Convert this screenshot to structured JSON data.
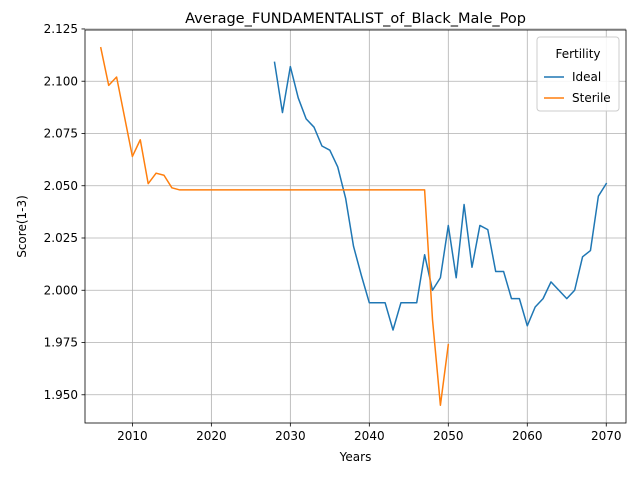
{
  "chart_data": {
    "type": "line",
    "title": "Average_FUNDAMENTALIST_of_Black_Male_Pop",
    "xlabel": "Years",
    "ylabel": "Score(1-3)",
    "xlim": [
      2004,
      2072.5
    ],
    "ylim": [
      1.9365,
      2.1245
    ],
    "xticks": [
      2010,
      2020,
      2030,
      2040,
      2050,
      2060,
      2070
    ],
    "yticks": [
      1.95,
      1.975,
      2.0,
      2.025,
      2.05,
      2.075,
      2.1,
      2.125
    ],
    "ytick_labels": [
      "1.950",
      "1.975",
      "2.000",
      "2.025",
      "2.050",
      "2.075",
      "2.100",
      "2.125"
    ],
    "grid": true,
    "legend": {
      "title": "Fertility",
      "placement": "top-right"
    },
    "series": [
      {
        "name": "Ideal",
        "color": "#1f77b4",
        "x": [
          2028,
          2029,
          2030,
          2031,
          2032,
          2033,
          2034,
          2035,
          2036,
          2037,
          2038,
          2039,
          2040,
          2041,
          2042,
          2043,
          2044,
          2045,
          2046,
          2047,
          2048,
          2049,
          2050,
          2051,
          2052,
          2053,
          2054,
          2055,
          2056,
          2057,
          2058,
          2059,
          2060,
          2061,
          2062,
          2063,
          2064,
          2065,
          2066,
          2067,
          2068,
          2069,
          2070
        ],
        "y": [
          2.109,
          2.085,
          2.107,
          2.092,
          2.082,
          2.078,
          2.069,
          2.067,
          2.059,
          2.044,
          2.021,
          2.007,
          1.994,
          1.994,
          1.994,
          1.981,
          1.994,
          1.994,
          1.994,
          2.017,
          2.0,
          2.006,
          2.031,
          2.006,
          2.041,
          2.011,
          2.031,
          2.029,
          2.009,
          2.009,
          1.996,
          1.996,
          1.983,
          1.992,
          1.996,
          2.004,
          2.0,
          1.996,
          2.0,
          2.016,
          2.019,
          2.045,
          2.051
        ]
      },
      {
        "name": "Sterile",
        "color": "#ff7f0e",
        "x": [
          2006,
          2007,
          2008,
          2009,
          2010,
          2011,
          2012,
          2013,
          2014,
          2015,
          2016,
          2017,
          2018,
          2019,
          2020,
          2025,
          2030,
          2035,
          2040,
          2045,
          2047,
          2048,
          2049,
          2050
        ],
        "y": [
          2.116,
          2.098,
          2.102,
          2.083,
          2.064,
          2.072,
          2.051,
          2.056,
          2.055,
          2.049,
          2.048,
          2.048,
          2.048,
          2.048,
          2.048,
          2.048,
          2.048,
          2.048,
          2.048,
          2.048,
          2.048,
          1.986,
          1.945,
          1.974
        ]
      }
    ]
  }
}
